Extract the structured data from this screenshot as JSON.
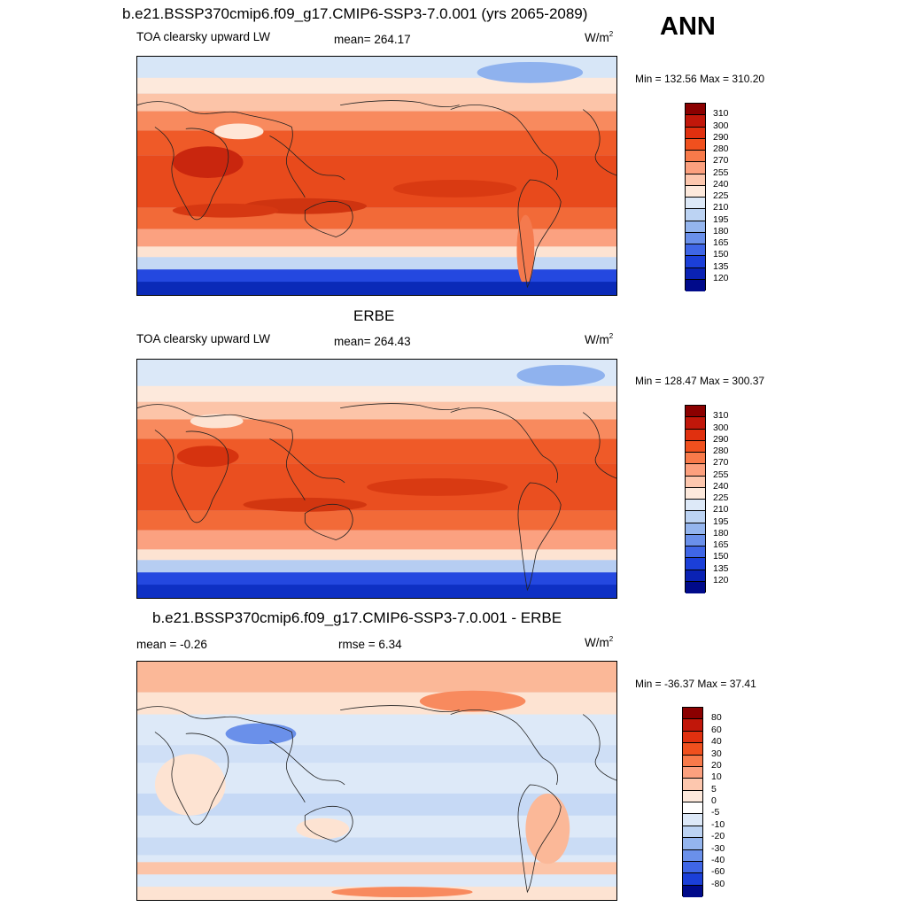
{
  "season": "ANN",
  "panels": [
    {
      "title": "b.e21.BSSP370cmip6.f09_g17.CMIP6-SSP3-7.0.001 (yrs 2065-2089)",
      "left_label": "TOA clearsky upward LW",
      "center_label": "mean= 264.17",
      "units": "W/m",
      "units_sup": "2",
      "minmax": "Min = 132.56 Max = 310.20",
      "colorbar": {
        "labels": [
          "310",
          "300",
          "290",
          "280",
          "270",
          "255",
          "240",
          "225",
          "210",
          "195",
          "180",
          "165",
          "150",
          "135",
          "120"
        ],
        "colors": [
          "#8b0000",
          "#c1170a",
          "#e0300f",
          "#f0501e",
          "#f87a4a",
          "#fca07e",
          "#fdc7ae",
          "#fde9dc",
          "#dde9f8",
          "#bcd3f3",
          "#94b5ee",
          "#6a90ea",
          "#3f66e6",
          "#1b3fd8",
          "#0a22b4",
          "#000a8a"
        ]
      }
    },
    {
      "title": "ERBE",
      "left_label": "TOA clearsky upward LW",
      "center_label": "mean= 264.43",
      "units": "W/m",
      "units_sup": "2",
      "minmax": "Min = 128.47 Max = 300.37",
      "colorbar": {
        "labels": [
          "310",
          "300",
          "290",
          "280",
          "270",
          "255",
          "240",
          "225",
          "210",
          "195",
          "180",
          "165",
          "150",
          "135",
          "120"
        ],
        "colors": [
          "#8b0000",
          "#c1170a",
          "#e0300f",
          "#f0501e",
          "#f87a4a",
          "#fca07e",
          "#fdc7ae",
          "#fde9dc",
          "#dde9f8",
          "#bcd3f3",
          "#94b5ee",
          "#6a90ea",
          "#3f66e6",
          "#1b3fd8",
          "#0a22b4",
          "#000a8a"
        ]
      }
    },
    {
      "title": "b.e21.BSSP370cmip6.f09_g17.CMIP6-SSP3-7.0.001 - ERBE",
      "left_label": "mean =  -0.26",
      "center_label": "rmse =   6.34",
      "units": "W/m",
      "units_sup": "2",
      "minmax": "Min = -36.37 Max =  37.41",
      "colorbar": {
        "labels": [
          "80",
          "60",
          "40",
          "30",
          "20",
          "10",
          "5",
          "0",
          "-5",
          "-10",
          "-20",
          "-30",
          "-40",
          "-60",
          "-80"
        ],
        "colors": [
          "#8b0000",
          "#c1170a",
          "#e0300f",
          "#f0501e",
          "#f87a4a",
          "#fca07e",
          "#fdc7ae",
          "#fde9dc",
          "#ffffff",
          "#dde9f8",
          "#bcd3f3",
          "#94b5ee",
          "#6a90ea",
          "#3f66e6",
          "#1b3fd8",
          "#000a8a"
        ]
      }
    }
  ]
}
